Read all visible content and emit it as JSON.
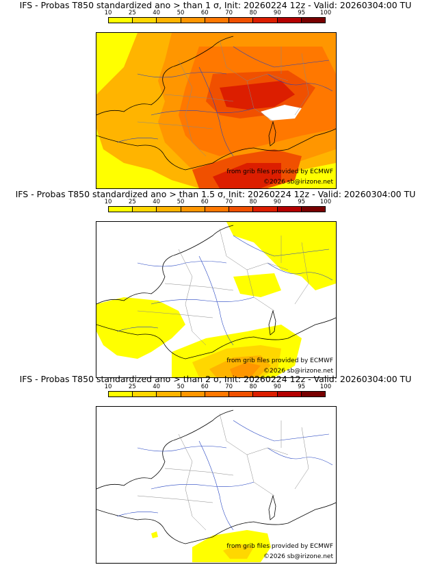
{
  "colorbar": {
    "labels": [
      "10",
      "25",
      "40",
      "50",
      "60",
      "70",
      "80",
      "90",
      "95",
      "100"
    ],
    "colors": [
      "#ffff00",
      "#ffd700",
      "#ffb400",
      "#ff9600",
      "#ff7800",
      "#f05000",
      "#dc1e00",
      "#b40000",
      "#780000"
    ]
  },
  "panels": [
    {
      "title": "IFS - Probas T850  standardized ano > than 1 σ, Init: 20260224 12z - Valid: 20260304:00 TU",
      "credit_source": "from grib files provided by ECMWF",
      "credit_copyright": "©2026 sb@irizone.net",
      "fill_level": "high"
    },
    {
      "title": "IFS - Probas T850  standardized ano > than 1.5 σ, Init: 20260224 12z - Valid: 20260304:00 TU",
      "credit_source": "from grib files provided by ECMWF",
      "credit_copyright": "©2026 sb@irizone.net",
      "fill_level": "medium"
    },
    {
      "title": "IFS - Probas T850  standardized ano > than 2 σ, Init: 20260224 12z - Valid: 20260304:00 TU",
      "credit_source": "from grib files provided by ECMWF",
      "credit_copyright": "©2026 sb@irizone.net",
      "fill_level": "low"
    }
  ]
}
